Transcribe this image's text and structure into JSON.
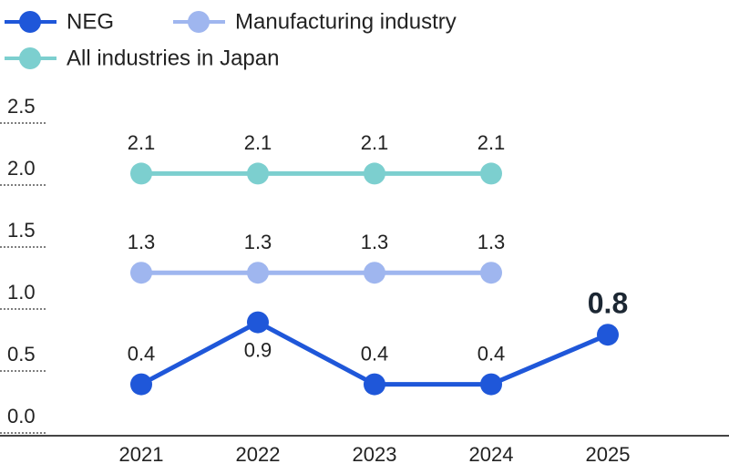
{
  "chart_data": {
    "type": "line",
    "categories": [
      "2021",
      "2022",
      "2023",
      "2024",
      "2025"
    ],
    "series": [
      {
        "name": "NEG",
        "color": "#1f57d9",
        "values": [
          0.4,
          0.9,
          0.4,
          0.4,
          0.8
        ]
      },
      {
        "name": "Manufacturing industry",
        "color": "#9fb6ef",
        "values": [
          1.3,
          1.3,
          1.3,
          1.3,
          null
        ]
      },
      {
        "name": "All industries in Japan",
        "color": "#7ccfcf",
        "values": [
          2.1,
          2.1,
          2.1,
          2.1,
          null
        ]
      }
    ],
    "ylim": [
      0,
      2.5
    ],
    "yticks": [
      {
        "value": 0,
        "label": "0.0"
      },
      0.5,
      {
        "value": 1,
        "label": "1.0"
      },
      1.5,
      {
        "value": 2,
        "label": "2.0"
      },
      2.5
    ]
  }
}
